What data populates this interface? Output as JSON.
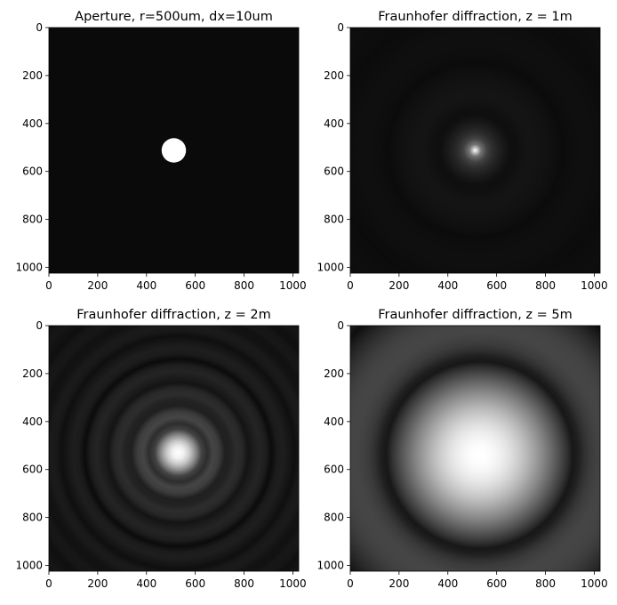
{
  "chart_data": [
    {
      "type": "heatmap",
      "title": "Aperture, r=500um, dx=10um",
      "colormap": "gray",
      "pattern": "disk",
      "xticks": [
        0,
        200,
        400,
        600,
        800,
        1000
      ],
      "yticks": [
        0,
        200,
        400,
        600,
        800,
        1000
      ],
      "xlim": [
        0,
        1024
      ],
      "ylim": [
        1024,
        0
      ],
      "center": [
        512,
        512
      ],
      "disk_radius": 50
    },
    {
      "type": "heatmap",
      "title": "Fraunhofer diffraction, z = 1m",
      "colormap": "gray",
      "pattern": "airy",
      "xticks": [
        0,
        200,
        400,
        600,
        800,
        1000
      ],
      "yticks": [
        0,
        200,
        400,
        600,
        800,
        1000
      ],
      "xlim": [
        0,
        1024
      ],
      "ylim": [
        1024,
        0
      ],
      "center": [
        512,
        512
      ],
      "first_dark_ring_radius": 33
    },
    {
      "type": "heatmap",
      "title": "Fraunhofer diffraction, z = 2m",
      "colormap": "gray",
      "pattern": "airy",
      "xticks": [
        0,
        200,
        400,
        600,
        800,
        1000
      ],
      "yticks": [
        0,
        200,
        400,
        600,
        800,
        1000
      ],
      "xlim": [
        0,
        1024
      ],
      "ylim": [
        1024,
        0
      ],
      "center": [
        530,
        530
      ],
      "first_dark_ring_radius": 110
    },
    {
      "type": "heatmap",
      "title": "Fraunhofer diffraction, z = 5m",
      "colormap": "gray",
      "pattern": "airy",
      "xticks": [
        0,
        200,
        400,
        600,
        800,
        1000
      ],
      "yticks": [
        0,
        200,
        400,
        600,
        800,
        1000
      ],
      "xlim": [
        0,
        1024
      ],
      "ylim": [
        1024,
        0
      ],
      "center": [
        530,
        540
      ],
      "first_dark_ring_radius": 390
    }
  ]
}
